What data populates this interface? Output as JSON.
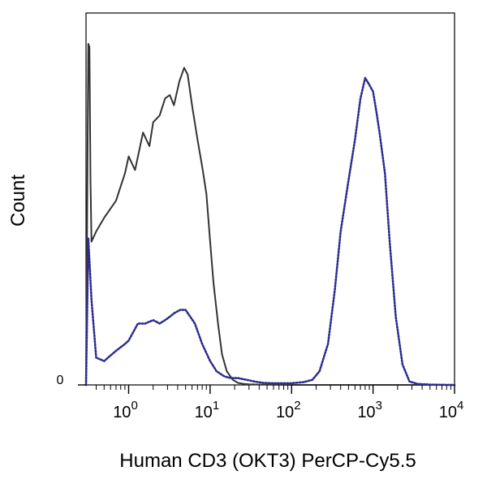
{
  "chart_data": {
    "type": "line",
    "title": "",
    "xlabel": "Human CD3 (OKT3) PerCP-Cy5.5",
    "ylabel": "Count",
    "x_scale": "log",
    "xlim": [
      0.3,
      10000
    ],
    "ylim": [
      0,
      100
    ],
    "grid": false,
    "legend": "none",
    "x_ticks": [
      {
        "value": 1,
        "base": "10",
        "exp": "0"
      },
      {
        "value": 10,
        "base": "10",
        "exp": "1"
      },
      {
        "value": 100,
        "base": "10",
        "exp": "2"
      },
      {
        "value": 1000,
        "base": "10",
        "exp": "3"
      },
      {
        "value": 10000,
        "base": "10",
        "exp": "4"
      }
    ],
    "y_ticks": [
      {
        "value": 0,
        "label": "0"
      }
    ],
    "series": [
      {
        "style": "solid",
        "color": "#333333",
        "x": [
          0.3,
          0.32,
          0.33,
          0.34,
          0.35,
          0.4,
          0.5,
          0.7,
          0.9,
          1.0,
          1.2,
          1.5,
          1.8,
          2.0,
          2.4,
          2.8,
          3.2,
          3.6,
          4.2,
          4.8,
          5.3,
          6.0,
          7.0,
          8.0,
          9.0,
          10.0,
          11.0,
          12.5,
          14.0,
          16.0,
          19.0,
          22.0,
          26.0,
          30.0,
          40.0,
          60.0,
          100.0,
          300.0,
          1000.0,
          10000.0
        ],
        "values": [
          0,
          100,
          99,
          60,
          42,
          45,
          49,
          54,
          62,
          67,
          63,
          74,
          70,
          77,
          79,
          84,
          85,
          82,
          89,
          93,
          91,
          82,
          72,
          64,
          56,
          42,
          30,
          18,
          9,
          4,
          1.5,
          0.6,
          0.3,
          0.2,
          0.1,
          0.05,
          0,
          0,
          0,
          0
        ]
      },
      {
        "style": "dotted",
        "color": "#2d2d8f",
        "x": [
          0.3,
          0.32,
          0.35,
          0.4,
          0.5,
          0.7,
          0.9,
          1.0,
          1.3,
          1.6,
          2.0,
          2.4,
          2.8,
          3.2,
          3.6,
          4.3,
          5.0,
          5.7,
          6.5,
          8.0,
          10.0,
          12.0,
          15.0,
          18.0,
          22.0,
          28.0,
          35.0,
          45.0,
          60.0,
          80.0,
          100.0,
          140.0,
          180.0,
          220.0,
          280.0,
          340.0,
          400.0,
          500.0,
          600.0,
          700.0,
          800.0,
          900.0,
          1000.0,
          1100.0,
          1200.0,
          1400.0,
          1600.0,
          1900.0,
          2300.0,
          2800.0,
          3500.0,
          5000.0,
          10000.0
        ],
        "values": [
          0,
          43,
          25,
          8,
          7,
          10,
          12,
          13,
          18,
          18,
          19,
          18,
          19,
          20,
          21,
          22,
          22,
          20,
          18,
          12,
          7,
          4,
          2.5,
          2,
          2,
          1.5,
          1,
          0.6,
          0.5,
          0.5,
          0.5,
          0.8,
          1.5,
          4,
          12,
          28,
          45,
          60,
          72,
          84,
          90,
          88,
          86,
          80,
          74,
          62,
          42,
          20,
          6,
          1,
          0.3,
          0.1,
          0
        ]
      }
    ]
  }
}
